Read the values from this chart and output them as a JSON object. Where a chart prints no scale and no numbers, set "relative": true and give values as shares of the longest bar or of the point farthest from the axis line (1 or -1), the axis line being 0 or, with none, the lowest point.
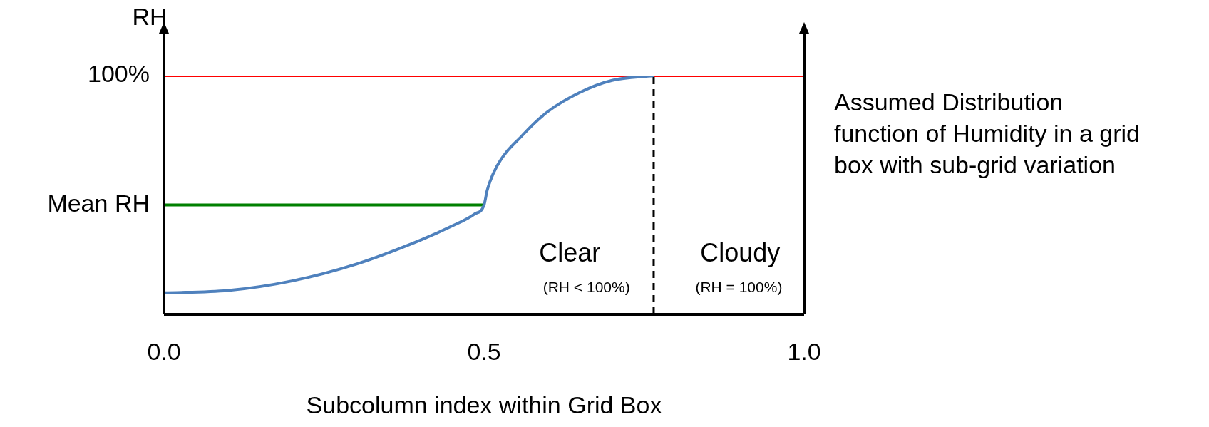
{
  "chart_data": {
    "type": "line",
    "relative": true,
    "xlabel": "Subcolumn index within Grid Box",
    "ylabel": "RH",
    "xlim": [
      0,
      1
    ],
    "xticks": [
      {
        "value": 0,
        "label": "0.0"
      },
      {
        "value": 0.5,
        "label": "0.5"
      },
      {
        "value": 1,
        "label": "1.0"
      }
    ],
    "marker": "none",
    "legend": false,
    "line_style": "solid",
    "series": [
      {
        "color": "#4f81bd",
        "x": [
          0,
          0.1,
          0.2,
          0.3,
          0.4,
          0.45,
          0.485,
          0.5,
          0.505,
          0.52,
          0.56,
          0.6,
          0.65,
          0.7,
          0.765
        ],
        "values": [
          0.09,
          0.1,
          0.14,
          0.21,
          0.31,
          0.37,
          0.42,
          0.458,
          0.52,
          0.62,
          0.75,
          0.85,
          0.93,
          0.98,
          1
        ]
      },
      {
        "name": "100%",
        "color": "#ff0000",
        "x": [
          0,
          1
        ],
        "values": [
          1,
          1
        ]
      },
      {
        "name": "Mean RH",
        "color": "#008000",
        "x": [
          0,
          0.5
        ],
        "values": [
          0.458,
          0.458
        ]
      }
    ],
    "ref_lines": [
      {
        "axis": "x",
        "value": 0.765,
        "color": "#000000",
        "line_style": "dashed"
      }
    ],
    "annotations": [
      "Clear",
      "(RH < 100%)",
      "Cloudy",
      "(RH = 100%)",
      "Assumed Distribution function of Humidity in a grid box with sub-grid variation"
    ]
  }
}
